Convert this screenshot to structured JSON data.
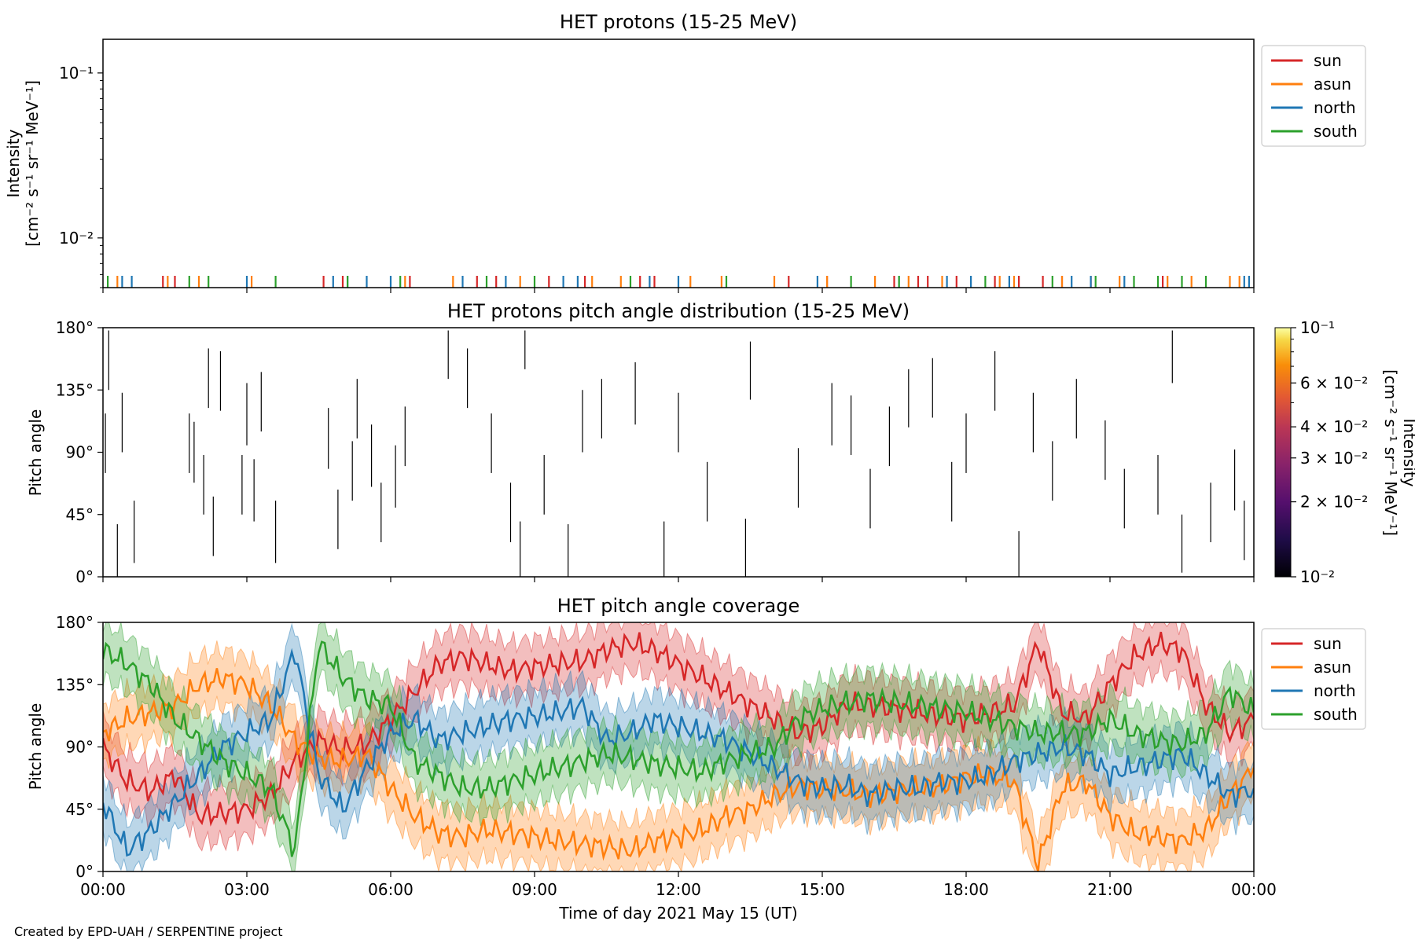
{
  "figure": {
    "credit": "Created by EPD-UAH / SERPENTINE project",
    "xlabel": "Time of day 2021 May 15 (UT)",
    "x_ticks": [
      "00:00",
      "03:00",
      "06:00",
      "09:00",
      "12:00",
      "15:00",
      "18:00",
      "21:00",
      "00:00"
    ]
  },
  "colors": {
    "sun": "#d62728",
    "asun": "#ff7f0e",
    "north": "#1f77b4",
    "south": "#2ca02c"
  },
  "chart_data": [
    {
      "type": "line",
      "title": "HET protons (15-25 MeV)",
      "ylabel_line1": "Intensity",
      "ylabel_line2": "[cm⁻² s⁻¹ sr⁻¹ MeV⁻¹]",
      "yscale": "log",
      "ylim": [
        0.005,
        0.16
      ],
      "y_ticks": [
        {
          "value": 0.1,
          "label": "10⁻¹"
        },
        {
          "value": 0.01,
          "label": "10⁻²"
        }
      ],
      "legend": {
        "placement": "upper-right-outside",
        "entries": [
          "sun",
          "asun",
          "north",
          "south"
        ]
      },
      "note": "Sparse single-count spikes near the bottom of the axis",
      "series": [
        {
          "name": "sun",
          "spikes_hours": [
            1.25,
            1.5,
            4.6,
            5.0,
            6.4,
            7.8,
            8.2,
            9.3,
            10.05,
            11.2,
            11.5,
            14.3,
            15.1,
            16.5,
            17.0,
            17.2,
            17.8,
            18.6,
            19.1,
            19.6,
            20.0,
            20.6,
            22.1
          ]
        },
        {
          "name": "asun",
          "spikes_hours": [
            0.3,
            1.35,
            2.0,
            3.1,
            6.3,
            7.3,
            8.7,
            10.2,
            10.8,
            12.25,
            12.9,
            14.0,
            15.1,
            16.1,
            16.8,
            17.5,
            18.7,
            19.0,
            20.0,
            21.2,
            22.2,
            22.7,
            23.5,
            23.7
          ]
        },
        {
          "name": "north",
          "spikes_hours": [
            0.4,
            0.6,
            3.0,
            4.8,
            5.1,
            5.5,
            6.0,
            7.5,
            8.4,
            9.6,
            9.9,
            11.4,
            12.0,
            14.9,
            16.6,
            17.6,
            18.1,
            18.9,
            20.2,
            20.6,
            21.3,
            23.8,
            23.9
          ]
        },
        {
          "name": "south",
          "spikes_hours": [
            0.1,
            1.8,
            2.2,
            3.6,
            5.1,
            6.2,
            8.0,
            9.0,
            11.0,
            13.0,
            15.6,
            16.6,
            18.4,
            19.8,
            20.7,
            21.5,
            22.0,
            22.5,
            23.0
          ]
        }
      ]
    },
    {
      "type": "heatmap",
      "title": "HET protons pitch angle distribution (15-25 MeV)",
      "ylabel": "Pitch angle",
      "ylim": [
        0,
        180
      ],
      "y_ticks": [
        "0°",
        "45°",
        "90°",
        "135°",
        "180°"
      ],
      "colorbar": {
        "label_line1": "Intensity",
        "label_line2": "[cm⁻² s⁻¹ sr⁻¹ MeV⁻¹]",
        "scale": "log",
        "range": [
          0.01,
          0.1
        ],
        "ticks": [
          {
            "value": 0.1,
            "label": "10⁻¹"
          },
          {
            "value": 0.06,
            "label": "6 × 10⁻²"
          },
          {
            "value": 0.04,
            "label": "4 × 10⁻²"
          },
          {
            "value": 0.03,
            "label": "3 × 10⁻²"
          },
          {
            "value": 0.02,
            "label": "2 × 10⁻²"
          },
          {
            "value": 0.01,
            "label": "10⁻²"
          }
        ]
      },
      "segments": [
        {
          "t": 0.05,
          "pa_low": 75,
          "pa_high": 118
        },
        {
          "t": 0.12,
          "pa_low": 135,
          "pa_high": 178
        },
        {
          "t": 0.3,
          "pa_low": 0,
          "pa_high": 38
        },
        {
          "t": 0.4,
          "pa_low": 90,
          "pa_high": 133
        },
        {
          "t": 0.65,
          "pa_low": 10,
          "pa_high": 55
        },
        {
          "t": 1.8,
          "pa_low": 75,
          "pa_high": 118
        },
        {
          "t": 1.9,
          "pa_low": 68,
          "pa_high": 112
        },
        {
          "t": 2.1,
          "pa_low": 45,
          "pa_high": 88
        },
        {
          "t": 2.2,
          "pa_low": 122,
          "pa_high": 165
        },
        {
          "t": 2.3,
          "pa_low": 15,
          "pa_high": 58
        },
        {
          "t": 2.45,
          "pa_low": 120,
          "pa_high": 163
        },
        {
          "t": 2.9,
          "pa_low": 45,
          "pa_high": 88
        },
        {
          "t": 3.0,
          "pa_low": 95,
          "pa_high": 140
        },
        {
          "t": 3.15,
          "pa_low": 40,
          "pa_high": 85
        },
        {
          "t": 3.3,
          "pa_low": 105,
          "pa_high": 148
        },
        {
          "t": 3.6,
          "pa_low": 10,
          "pa_high": 55
        },
        {
          "t": 4.7,
          "pa_low": 78,
          "pa_high": 122
        },
        {
          "t": 4.9,
          "pa_low": 20,
          "pa_high": 63
        },
        {
          "t": 5.2,
          "pa_low": 55,
          "pa_high": 98
        },
        {
          "t": 5.3,
          "pa_low": 100,
          "pa_high": 143
        },
        {
          "t": 5.6,
          "pa_low": 65,
          "pa_high": 110
        },
        {
          "t": 5.8,
          "pa_low": 25,
          "pa_high": 68
        },
        {
          "t": 6.1,
          "pa_low": 50,
          "pa_high": 95
        },
        {
          "t": 6.3,
          "pa_low": 80,
          "pa_high": 123
        },
        {
          "t": 7.2,
          "pa_low": 143,
          "pa_high": 178
        },
        {
          "t": 7.6,
          "pa_low": 122,
          "pa_high": 165
        },
        {
          "t": 8.1,
          "pa_low": 75,
          "pa_high": 118
        },
        {
          "t": 8.5,
          "pa_low": 25,
          "pa_high": 68
        },
        {
          "t": 8.7,
          "pa_low": 0,
          "pa_high": 40
        },
        {
          "t": 8.8,
          "pa_low": 150,
          "pa_high": 178
        },
        {
          "t": 9.2,
          "pa_low": 45,
          "pa_high": 88
        },
        {
          "t": 9.7,
          "pa_low": 0,
          "pa_high": 38
        },
        {
          "t": 10.0,
          "pa_low": 90,
          "pa_high": 135
        },
        {
          "t": 10.4,
          "pa_low": 100,
          "pa_high": 143
        },
        {
          "t": 11.1,
          "pa_low": 110,
          "pa_high": 155
        },
        {
          "t": 11.7,
          "pa_low": 0,
          "pa_high": 40
        },
        {
          "t": 12.0,
          "pa_low": 90,
          "pa_high": 133
        },
        {
          "t": 12.6,
          "pa_low": 40,
          "pa_high": 83
        },
        {
          "t": 13.4,
          "pa_low": 0,
          "pa_high": 42
        },
        {
          "t": 13.5,
          "pa_low": 128,
          "pa_high": 170
        },
        {
          "t": 14.5,
          "pa_low": 50,
          "pa_high": 93
        },
        {
          "t": 15.2,
          "pa_low": 95,
          "pa_high": 140
        },
        {
          "t": 15.6,
          "pa_low": 88,
          "pa_high": 131
        },
        {
          "t": 16.0,
          "pa_low": 35,
          "pa_high": 78
        },
        {
          "t": 16.4,
          "pa_low": 80,
          "pa_high": 123
        },
        {
          "t": 16.8,
          "pa_low": 108,
          "pa_high": 150
        },
        {
          "t": 17.3,
          "pa_low": 115,
          "pa_high": 158
        },
        {
          "t": 17.7,
          "pa_low": 40,
          "pa_high": 83
        },
        {
          "t": 18.0,
          "pa_low": 75,
          "pa_high": 118
        },
        {
          "t": 18.6,
          "pa_low": 120,
          "pa_high": 163
        },
        {
          "t": 19.1,
          "pa_low": 0,
          "pa_high": 33
        },
        {
          "t": 19.4,
          "pa_low": 90,
          "pa_high": 133
        },
        {
          "t": 19.8,
          "pa_low": 55,
          "pa_high": 98
        },
        {
          "t": 20.3,
          "pa_low": 100,
          "pa_high": 143
        },
        {
          "t": 20.9,
          "pa_low": 70,
          "pa_high": 113
        },
        {
          "t": 21.3,
          "pa_low": 35,
          "pa_high": 78
        },
        {
          "t": 22.0,
          "pa_low": 45,
          "pa_high": 88
        },
        {
          "t": 22.3,
          "pa_low": 140,
          "pa_high": 178
        },
        {
          "t": 22.5,
          "pa_low": 3,
          "pa_high": 45
        },
        {
          "t": 23.1,
          "pa_low": 25,
          "pa_high": 68
        },
        {
          "t": 23.6,
          "pa_low": 48,
          "pa_high": 92
        },
        {
          "t": 23.8,
          "pa_low": 12,
          "pa_high": 55
        }
      ]
    },
    {
      "type": "line",
      "title": "HET pitch angle coverage",
      "ylabel": "Pitch angle",
      "ylim": [
        0,
        180
      ],
      "y_ticks": [
        "0°",
        "45°",
        "90°",
        "135°",
        "180°"
      ],
      "legend": {
        "placement": "upper-right-outside",
        "entries": [
          "sun",
          "asun",
          "north",
          "south"
        ]
      },
      "band_halfwidth_deg": 20,
      "x_hours": [
        0,
        0.5,
        1,
        1.5,
        2,
        2.5,
        3,
        3.5,
        4,
        4.5,
        5,
        5.5,
        6,
        6.5,
        7,
        7.5,
        8,
        8.5,
        9,
        9.5,
        10,
        10.5,
        11,
        11.5,
        12,
        12.5,
        13,
        13.5,
        14,
        14.5,
        15,
        15.5,
        16,
        16.5,
        17,
        17.5,
        18,
        18.5,
        19,
        19.5,
        20,
        20.5,
        21,
        21.5,
        22,
        22.5,
        23,
        23.5,
        24
      ],
      "series": [
        {
          "name": "sun",
          "values": [
            90,
            65,
            58,
            70,
            40,
            42,
            45,
            55,
            80,
            95,
            88,
            92,
            110,
            130,
            150,
            155,
            150,
            145,
            148,
            150,
            152,
            160,
            165,
            160,
            150,
            140,
            130,
            120,
            110,
            100,
            105,
            120,
            120,
            118,
            115,
            112,
            110,
            115,
            120,
            165,
            115,
            110,
            135,
            155,
            165,
            160,
            120,
            100,
            110
          ]
        },
        {
          "name": "asun",
          "values": [
            100,
            110,
            115,
            120,
            135,
            140,
            135,
            120,
            95,
            82,
            80,
            85,
            60,
            40,
            28,
            25,
            30,
            28,
            25,
            22,
            20,
            18,
            15,
            22,
            25,
            30,
            40,
            45,
            55,
            62,
            60,
            58,
            55,
            58,
            60,
            62,
            68,
            70,
            65,
            5,
            60,
            65,
            40,
            28,
            25,
            22,
            30,
            55,
            75
          ]
        },
        {
          "name": "north",
          "values": [
            50,
            15,
            30,
            50,
            70,
            90,
            100,
            110,
            160,
            70,
            45,
            75,
            100,
            110,
            95,
            100,
            105,
            110,
            112,
            115,
            120,
            95,
            100,
            110,
            105,
            100,
            95,
            85,
            75,
            65,
            60,
            62,
            55,
            60,
            60,
            65,
            65,
            70,
            80,
            85,
            90,
            85,
            70,
            75,
            80,
            85,
            70,
            55,
            60
          ]
        },
        {
          "name": "south",
          "values": [
            160,
            150,
            135,
            110,
            95,
            80,
            70,
            60,
            15,
            165,
            140,
            125,
            120,
            80,
            70,
            60,
            60,
            65,
            70,
            75,
            80,
            85,
            82,
            78,
            75,
            72,
            80,
            85,
            90,
            110,
            118,
            122,
            125,
            122,
            120,
            118,
            115,
            110,
            105,
            100,
            100,
            100,
            110,
            100,
            95,
            92,
            100,
            130,
            115
          ]
        }
      ]
    }
  ]
}
